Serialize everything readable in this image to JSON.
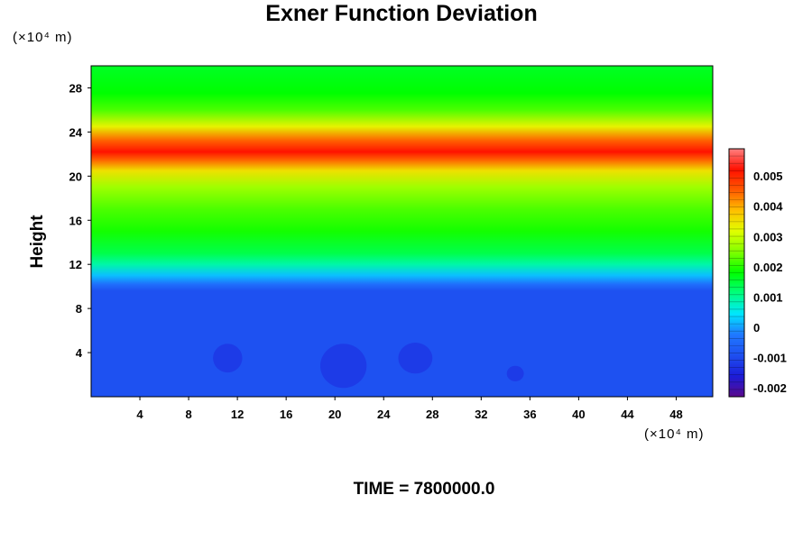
{
  "chart_data": {
    "type": "heatmap",
    "title": "Exner Function Deviation",
    "ylabel": "Height",
    "y_unit": "(×10⁴ m)",
    "x_unit": "(×10⁴ m)",
    "time_label": "TIME = 7800000.0",
    "xlim": [
      0,
      51
    ],
    "ylim": [
      0,
      30
    ],
    "x_ticks": [
      "4",
      "8",
      "12",
      "16",
      "20",
      "24",
      "28",
      "32",
      "36",
      "40",
      "44",
      "48"
    ],
    "x_tick_values": [
      4,
      8,
      12,
      16,
      20,
      24,
      28,
      32,
      36,
      40,
      44,
      48
    ],
    "y_ticks": [
      "4",
      "8",
      "12",
      "16",
      "20",
      "24",
      "28"
    ],
    "y_tick_values": [
      4,
      8,
      12,
      16,
      20,
      24,
      28
    ],
    "colorbar": {
      "vmin": -0.0023,
      "vmax": 0.0059,
      "tick_labels": [
        "0.005",
        "0.004",
        "0.003",
        "0.002",
        "0.001",
        "0",
        "-0.001",
        "-0.002"
      ],
      "tick_values": [
        0.005,
        0.004,
        0.003,
        0.002,
        0.001,
        0,
        -0.001,
        -0.002
      ],
      "colors": [
        "#5a0a8c",
        "#1c1cd8",
        "#1e4ff0",
        "#1f78ff",
        "#00e6ff",
        "#00ff80",
        "#00ff00",
        "#80ff00",
        "#e0ff00",
        "#ffc000",
        "#ff5a00",
        "#ff1000",
        "#ff8080"
      ]
    },
    "vertical_profile": {
      "heights": [
        0,
        9.6,
        10.2,
        11.0,
        12.0,
        13.0,
        15.0,
        17.0,
        19.0,
        20.5,
        21.5,
        22.2,
        23.2,
        24.5,
        26.0,
        27.5,
        30.0
      ],
      "values": [
        -0.0009,
        -0.0009,
        -0.0004,
        0.0002,
        0.0009,
        0.0014,
        0.0019,
        0.0022,
        0.0027,
        0.0035,
        0.0045,
        0.0052,
        0.0045,
        0.0033,
        0.0022,
        0.0018,
        0.0016
      ]
    },
    "anomalies": [
      {
        "x": 11.2,
        "y": 3.5,
        "rx": 1.2,
        "ry": 1.3,
        "value": -0.0012
      },
      {
        "x": 20.7,
        "y": 2.8,
        "rx": 1.9,
        "ry": 2.0,
        "value": -0.0012
      },
      {
        "x": 26.6,
        "y": 3.5,
        "rx": 1.4,
        "ry": 1.4,
        "value": -0.0012
      },
      {
        "x": 34.8,
        "y": 2.1,
        "rx": 0.7,
        "ry": 0.7,
        "value": -0.0012
      }
    ]
  }
}
